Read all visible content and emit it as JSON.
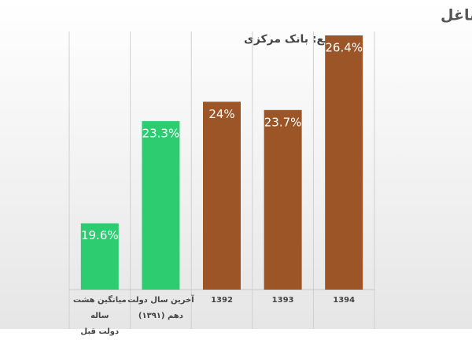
{
  "chart_data": {
    "type": "bar",
    "title": "درصد تعداد خانوارهای فاقد حتی یک شاغل",
    "subtitle": "منبع: بانک مرکزی",
    "categories": [
      "میانگین هشت ساله\nدولت قبل",
      "آخرین سال دولت\nدهم (۱۳۹۱)",
      "1392",
      "1393",
      "1394"
    ],
    "values": [
      19.6,
      23.3,
      24,
      23.7,
      26.4
    ],
    "value_labels": [
      "19.6%",
      "23.3%",
      "24%",
      "23.7%",
      "26.4%"
    ],
    "colors": [
      "#2ecc71",
      "#2ecc71",
      "#9b5527",
      "#9b5527",
      "#9b5527"
    ],
    "ylim": [
      17.2,
      26.4
    ]
  }
}
